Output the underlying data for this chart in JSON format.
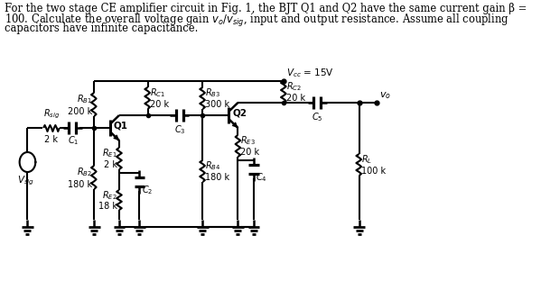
{
  "bg_color": "#ffffff",
  "title_lines": [
    "For the two stage CE amplifier circuit in Fig. 1, the BJT Q1 and Q2 have the same current gain β =",
    "100. Calculate the overall voltage gain $v_o/v_{sig}$, input and output resistance. Assume all coupling",
    "capacitors have infinite capacitance."
  ],
  "vcc_label": "$V_{cc}$ = 15V",
  "components": {
    "RB1_label": "$R_{B1}$",
    "RB1_val": "200 k",
    "RB2_label": "$R_{B2}$",
    "RB2_val": "180 k",
    "RC1_label": "$R_{C1}$",
    "RC1_val": "20 k",
    "RB3_label": "$R_{B3}$",
    "RB3_val": "300 k",
    "RB4_label": "$R_{B4}$",
    "RB4_val": "180 k",
    "RC2_label": "$R_{C2}$",
    "RC2_val": "20 k",
    "RE1_label": "$R_{E1}$",
    "RE1_val": "2 k",
    "RE2_label": "$R_{E2}$",
    "RE2_val": "18 k",
    "RE3_label": "$R_{E3}$",
    "RE3_val": "20 k",
    "RL_label": "$R_L$",
    "RL_val": "100 k",
    "Rsig_label": "$R_{sig}$",
    "Rsig_val": "2 k",
    "C1_label": "$C_1$",
    "C2_label": "$C_2$",
    "C3_label": "$C_3$",
    "C4_label": "$C_4$",
    "C5_label": "$C_5$",
    "Q1_label": "Q1",
    "Q2_label": "Q2",
    "Vsig_label": "$V_{sig}$",
    "Vo_label": "$v_o$"
  }
}
